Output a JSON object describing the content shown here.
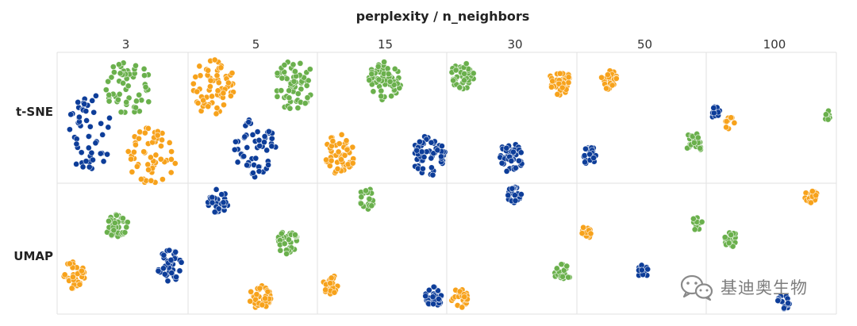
{
  "chart_data": {
    "type": "scatter",
    "title": "perplexity / n_neighbors",
    "columns": [
      "3",
      "5",
      "15",
      "30",
      "50",
      "100"
    ],
    "rows": [
      "t-SNE",
      "UMAP"
    ],
    "grid": true,
    "colors": {
      "blue": "#0d3d99",
      "orange": "#f7a21b",
      "green": "#6ab04c"
    },
    "clusters": [
      {
        "row": 0,
        "col": 0,
        "color": "green",
        "x": 0.55,
        "y": 0.27,
        "rx": 0.36,
        "ry": 0.18,
        "n": 55
      },
      {
        "row": 0,
        "col": 0,
        "color": "blue",
        "x": 0.25,
        "y": 0.62,
        "rx": 0.34,
        "ry": 0.25,
        "n": 50
      },
      {
        "row": 0,
        "col": 0,
        "color": "orange",
        "x": 0.72,
        "y": 0.79,
        "rx": 0.38,
        "ry": 0.18,
        "n": 55
      },
      {
        "row": 0,
        "col": 1,
        "color": "orange",
        "x": 0.2,
        "y": 0.27,
        "rx": 0.33,
        "ry": 0.19,
        "n": 60
      },
      {
        "row": 0,
        "col": 1,
        "color": "green",
        "x": 0.82,
        "y": 0.25,
        "rx": 0.32,
        "ry": 0.16,
        "n": 60
      },
      {
        "row": 0,
        "col": 1,
        "color": "blue",
        "x": 0.52,
        "y": 0.74,
        "rx": 0.32,
        "ry": 0.2,
        "n": 55
      },
      {
        "row": 0,
        "col": 2,
        "color": "green",
        "x": 0.52,
        "y": 0.22,
        "rx": 0.26,
        "ry": 0.13,
        "n": 55
      },
      {
        "row": 0,
        "col": 2,
        "color": "orange",
        "x": 0.17,
        "y": 0.78,
        "rx": 0.25,
        "ry": 0.13,
        "n": 55
      },
      {
        "row": 0,
        "col": 2,
        "color": "blue",
        "x": 0.86,
        "y": 0.79,
        "rx": 0.26,
        "ry": 0.13,
        "n": 60
      },
      {
        "row": 0,
        "col": 3,
        "color": "green",
        "x": 0.12,
        "y": 0.18,
        "rx": 0.18,
        "ry": 0.09,
        "n": 45
      },
      {
        "row": 0,
        "col": 3,
        "color": "orange",
        "x": 0.87,
        "y": 0.22,
        "rx": 0.17,
        "ry": 0.09,
        "n": 40
      },
      {
        "row": 0,
        "col": 3,
        "color": "blue",
        "x": 0.49,
        "y": 0.81,
        "rx": 0.19,
        "ry": 0.1,
        "n": 45
      },
      {
        "row": 0,
        "col": 4,
        "color": "orange",
        "x": 0.25,
        "y": 0.21,
        "rx": 0.13,
        "ry": 0.06,
        "n": 25
      },
      {
        "row": 0,
        "col": 4,
        "color": "green",
        "x": 0.91,
        "y": 0.69,
        "rx": 0.14,
        "ry": 0.07,
        "n": 25
      },
      {
        "row": 0,
        "col": 4,
        "color": "blue",
        "x": 0.1,
        "y": 0.79,
        "rx": 0.12,
        "ry": 0.06,
        "n": 25
      },
      {
        "row": 0,
        "col": 5,
        "color": "blue",
        "x": 0.07,
        "y": 0.46,
        "rx": 0.08,
        "ry": 0.04,
        "n": 12
      },
      {
        "row": 0,
        "col": 5,
        "color": "orange",
        "x": 0.18,
        "y": 0.54,
        "rx": 0.08,
        "ry": 0.04,
        "n": 12
      },
      {
        "row": 0,
        "col": 5,
        "color": "green",
        "x": 0.94,
        "y": 0.48,
        "rx": 0.07,
        "ry": 0.035,
        "n": 10
      },
      {
        "row": 1,
        "col": 0,
        "color": "green",
        "x": 0.45,
        "y": 0.31,
        "rx": 0.19,
        "ry": 0.09,
        "n": 40
      },
      {
        "row": 1,
        "col": 0,
        "color": "blue",
        "x": 0.86,
        "y": 0.63,
        "rx": 0.19,
        "ry": 0.1,
        "n": 40
      },
      {
        "row": 1,
        "col": 0,
        "color": "orange",
        "x": 0.13,
        "y": 0.7,
        "rx": 0.17,
        "ry": 0.09,
        "n": 35
      },
      {
        "row": 1,
        "col": 1,
        "color": "blue",
        "x": 0.23,
        "y": 0.14,
        "rx": 0.16,
        "ry": 0.08,
        "n": 35
      },
      {
        "row": 1,
        "col": 1,
        "color": "green",
        "x": 0.77,
        "y": 0.45,
        "rx": 0.16,
        "ry": 0.08,
        "n": 35
      },
      {
        "row": 1,
        "col": 1,
        "color": "orange",
        "x": 0.56,
        "y": 0.87,
        "rx": 0.17,
        "ry": 0.08,
        "n": 35
      },
      {
        "row": 1,
        "col": 2,
        "color": "green",
        "x": 0.38,
        "y": 0.12,
        "rx": 0.12,
        "ry": 0.07,
        "n": 25
      },
      {
        "row": 1,
        "col": 2,
        "color": "orange",
        "x": 0.1,
        "y": 0.78,
        "rx": 0.14,
        "ry": 0.07,
        "n": 25
      },
      {
        "row": 1,
        "col": 2,
        "color": "blue",
        "x": 0.9,
        "y": 0.87,
        "rx": 0.13,
        "ry": 0.07,
        "n": 28
      },
      {
        "row": 1,
        "col": 3,
        "color": "blue",
        "x": 0.52,
        "y": 0.09,
        "rx": 0.12,
        "ry": 0.05,
        "n": 22
      },
      {
        "row": 1,
        "col": 3,
        "color": "green",
        "x": 0.89,
        "y": 0.69,
        "rx": 0.12,
        "ry": 0.06,
        "n": 22
      },
      {
        "row": 1,
        "col": 3,
        "color": "orange",
        "x": 0.1,
        "y": 0.88,
        "rx": 0.13,
        "ry": 0.06,
        "n": 22
      },
      {
        "row": 1,
        "col": 4,
        "color": "orange",
        "x": 0.08,
        "y": 0.37,
        "rx": 0.09,
        "ry": 0.04,
        "n": 16
      },
      {
        "row": 1,
        "col": 4,
        "color": "green",
        "x": 0.92,
        "y": 0.31,
        "rx": 0.1,
        "ry": 0.045,
        "n": 16
      },
      {
        "row": 1,
        "col": 4,
        "color": "blue",
        "x": 0.51,
        "y": 0.67,
        "rx": 0.09,
        "ry": 0.04,
        "n": 16
      },
      {
        "row": 1,
        "col": 5,
        "color": "orange",
        "x": 0.8,
        "y": 0.09,
        "rx": 0.1,
        "ry": 0.05,
        "n": 18
      },
      {
        "row": 1,
        "col": 5,
        "color": "green",
        "x": 0.19,
        "y": 0.43,
        "rx": 0.1,
        "ry": 0.05,
        "n": 18
      },
      {
        "row": 1,
        "col": 5,
        "color": "blue",
        "x": 0.6,
        "y": 0.9,
        "rx": 0.1,
        "ry": 0.05,
        "n": 18
      }
    ]
  },
  "watermark": {
    "text": "基迪奥生物",
    "icon": "wechat-icon"
  }
}
